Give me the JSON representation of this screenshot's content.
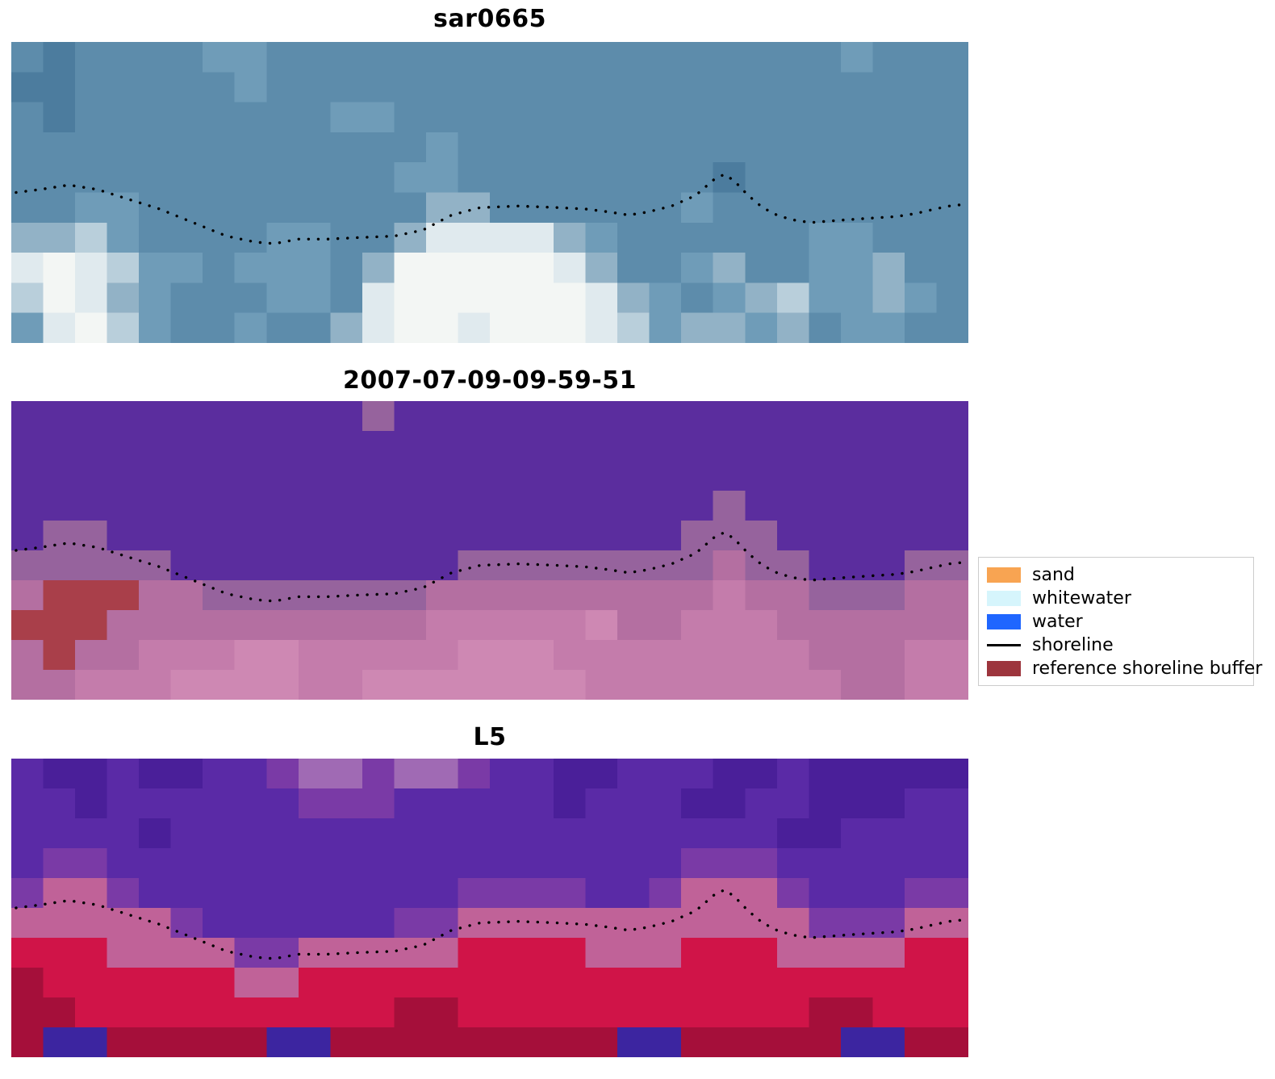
{
  "figure": {
    "background": "#ffffff"
  },
  "chart_data": {
    "type": "heatmap",
    "panels": [
      {
        "title": "sar0665",
        "grid": {
          "palette": {
            "a": "#4c7c9e",
            "b": "#5d8cab",
            "c": "#6f9cb8",
            "d": "#92b2c6",
            "e": "#b9cfdb",
            "f": "#e0eaee",
            "g": "#f3f6f4"
          },
          "rows": [
            "babbbbccbbbbbbbbbbbbbbbbbbcbbb",
            "aabbbbbcbbbbbbbbbbbbbbbbbbbbbb",
            "babbbbbbbbccbbbbbbbbbbbbbbbbbb",
            "bbbbbbbbbbbbbcbbbbbbbbbbbbbbbb",
            "bbbbbbbbbbbbccbbbbbbbbabbbbbbb",
            "bbccbbbbbbbbbddbbbbbbcbbbbbbbb",
            "ddecbbbbccbbdffffdcbbbbbbccbbb",
            "fgfeccbcccbdgggggfdbbcdbbccdbb",
            "egfdcbbbccbfggggggfdcbcdeccdcb",
            "cfgecbbcbbdfggfgggfecddcdbccbb"
          ]
        }
      },
      {
        "title": "2007-07-09-09-59-51",
        "grid": {
          "palette": {
            "p": "#5b2d9e",
            "q": "#96639d",
            "r": "#b46fa1",
            "s": "#c47cab",
            "t": "#ce88b3",
            "u": "#a93f4a"
          },
          "rows": [
            "pppppppppppqpppppppppppppppppp",
            "pppppppppppppppppppppppppppppp",
            "pppppppppppppppppppppppppppppp",
            "ppppppppppppppppppppppqppppppp",
            "pqqppppppppppppppppppqqqpppppp",
            "qqqqqpppppppppqqqqqqqqrqqpppqq",
            "ruuurrqqqqqqqrrrrrrrrrsrrqqqrr",
            "uuurrrrrrrrrrssssstrrsssrrrrrr",
            "rurrsssttssssstttssssssssrrrss",
            "rrsssttttsstttttttssssssssrrss"
          ]
        }
      },
      {
        "title": "L5",
        "grid": {
          "palette": {
            "j": "#4a1f99",
            "k": "#5a2aa6",
            "l": "#7a3aa6",
            "i": "#a06ab4",
            "m": "#c06298",
            "n": "#d01448",
            "o": "#a50f3a",
            "x": "#3c25a0"
          },
          "rows": [
            "kjjkjjkkliiliilkkjjkkkjjkjjjjj",
            "kkjkkkkkklllkkkkkjkkkjjkkjjjkk",
            "kkkkjkkkkkkkkkkkkkkkkkkkjjkkkk",
            "kllkkkkkkkkkkkkkkkkkklllkkkkkk",
            "lmmlkkkkkkkkkkllllkklmmmlkkkll",
            "mmmmmlkkkkkkllmmmmmmmmmmmlllmm",
            "nnnmmmmllmmmmmnnnnmmmnnnmmmmnn",
            "onnnnnnmmnnnnnnnnnnnnnnnnnnnnn",
            "oonnnnnnnnnnoonnnnnnnnnnnoonnn",
            "oxxoooooxxoooooooooxxoooooxxoo"
          ]
        }
      }
    ],
    "shoreline": {
      "color": "#000000",
      "style": "dotted",
      "points": [
        [
          0.005,
          0.5
        ],
        [
          0.03,
          0.49
        ],
        [
          0.06,
          0.475
        ],
        [
          0.09,
          0.49
        ],
        [
          0.12,
          0.52
        ],
        [
          0.155,
          0.555
        ],
        [
          0.19,
          0.6
        ],
        [
          0.225,
          0.645
        ],
        [
          0.255,
          0.665
        ],
        [
          0.275,
          0.67
        ],
        [
          0.3,
          0.655
        ],
        [
          0.33,
          0.655
        ],
        [
          0.36,
          0.65
        ],
        [
          0.4,
          0.645
        ],
        [
          0.43,
          0.625
        ],
        [
          0.46,
          0.575
        ],
        [
          0.49,
          0.55
        ],
        [
          0.53,
          0.545
        ],
        [
          0.57,
          0.55
        ],
        [
          0.6,
          0.555
        ],
        [
          0.625,
          0.565
        ],
        [
          0.645,
          0.575
        ],
        [
          0.665,
          0.565
        ],
        [
          0.69,
          0.545
        ],
        [
          0.715,
          0.51
        ],
        [
          0.735,
          0.455
        ],
        [
          0.745,
          0.44
        ],
        [
          0.755,
          0.46
        ],
        [
          0.77,
          0.51
        ],
        [
          0.785,
          0.55
        ],
        [
          0.8,
          0.575
        ],
        [
          0.815,
          0.59
        ],
        [
          0.835,
          0.6
        ],
        [
          0.855,
          0.595
        ],
        [
          0.875,
          0.59
        ],
        [
          0.9,
          0.585
        ],
        [
          0.925,
          0.58
        ],
        [
          0.945,
          0.57
        ],
        [
          0.965,
          0.555
        ],
        [
          0.98,
          0.545
        ],
        [
          0.995,
          0.54
        ]
      ]
    },
    "legend": [
      {
        "label": "sand",
        "swatch": "patch",
        "color": "#f8a452"
      },
      {
        "label": "whitewater",
        "swatch": "patch",
        "color": "#d6f5fc"
      },
      {
        "label": "water",
        "swatch": "patch",
        "color": "#1f66ff"
      },
      {
        "label": "shoreline",
        "swatch": "line",
        "color": "#000000"
      },
      {
        "label": "reference shoreline buffer",
        "swatch": "patch",
        "color": "#9d353d"
      }
    ]
  }
}
